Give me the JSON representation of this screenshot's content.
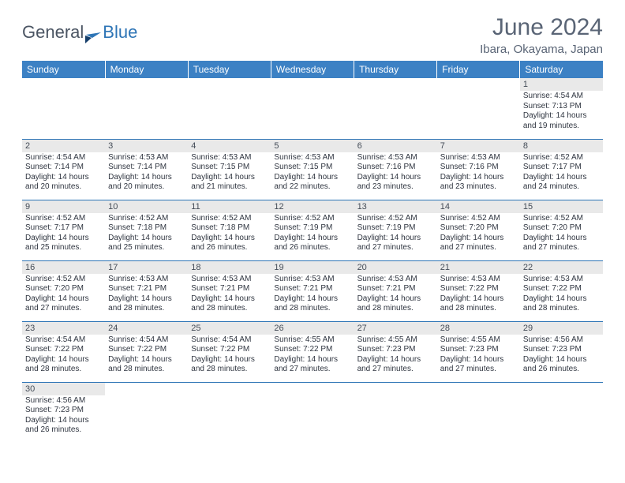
{
  "logo": {
    "text1": "General",
    "text2": "Blue"
  },
  "header": {
    "title": "June 2024",
    "location": "Ibara, Okayama, Japan"
  },
  "colors": {
    "header_bg": "#3c81c4",
    "header_text": "#ffffff",
    "daynum_bg": "#e9e9e9",
    "rule": "#2e75b6",
    "text": "#2f3540",
    "title_color": "#5a6576"
  },
  "weekdays": [
    "Sunday",
    "Monday",
    "Tuesday",
    "Wednesday",
    "Thursday",
    "Friday",
    "Saturday"
  ],
  "weeks": [
    [
      null,
      null,
      null,
      null,
      null,
      null,
      {
        "n": "1",
        "sr": "4:54 AM",
        "ss": "7:13 PM",
        "dl": "14 hours and 19 minutes."
      }
    ],
    [
      {
        "n": "2",
        "sr": "4:54 AM",
        "ss": "7:14 PM",
        "dl": "14 hours and 20 minutes."
      },
      {
        "n": "3",
        "sr": "4:53 AM",
        "ss": "7:14 PM",
        "dl": "14 hours and 20 minutes."
      },
      {
        "n": "4",
        "sr": "4:53 AM",
        "ss": "7:15 PM",
        "dl": "14 hours and 21 minutes."
      },
      {
        "n": "5",
        "sr": "4:53 AM",
        "ss": "7:15 PM",
        "dl": "14 hours and 22 minutes."
      },
      {
        "n": "6",
        "sr": "4:53 AM",
        "ss": "7:16 PM",
        "dl": "14 hours and 23 minutes."
      },
      {
        "n": "7",
        "sr": "4:53 AM",
        "ss": "7:16 PM",
        "dl": "14 hours and 23 minutes."
      },
      {
        "n": "8",
        "sr": "4:52 AM",
        "ss": "7:17 PM",
        "dl": "14 hours and 24 minutes."
      }
    ],
    [
      {
        "n": "9",
        "sr": "4:52 AM",
        "ss": "7:17 PM",
        "dl": "14 hours and 25 minutes."
      },
      {
        "n": "10",
        "sr": "4:52 AM",
        "ss": "7:18 PM",
        "dl": "14 hours and 25 minutes."
      },
      {
        "n": "11",
        "sr": "4:52 AM",
        "ss": "7:18 PM",
        "dl": "14 hours and 26 minutes."
      },
      {
        "n": "12",
        "sr": "4:52 AM",
        "ss": "7:19 PM",
        "dl": "14 hours and 26 minutes."
      },
      {
        "n": "13",
        "sr": "4:52 AM",
        "ss": "7:19 PM",
        "dl": "14 hours and 27 minutes."
      },
      {
        "n": "14",
        "sr": "4:52 AM",
        "ss": "7:20 PM",
        "dl": "14 hours and 27 minutes."
      },
      {
        "n": "15",
        "sr": "4:52 AM",
        "ss": "7:20 PM",
        "dl": "14 hours and 27 minutes."
      }
    ],
    [
      {
        "n": "16",
        "sr": "4:52 AM",
        "ss": "7:20 PM",
        "dl": "14 hours and 27 minutes."
      },
      {
        "n": "17",
        "sr": "4:53 AM",
        "ss": "7:21 PM",
        "dl": "14 hours and 28 minutes."
      },
      {
        "n": "18",
        "sr": "4:53 AM",
        "ss": "7:21 PM",
        "dl": "14 hours and 28 minutes."
      },
      {
        "n": "19",
        "sr": "4:53 AM",
        "ss": "7:21 PM",
        "dl": "14 hours and 28 minutes."
      },
      {
        "n": "20",
        "sr": "4:53 AM",
        "ss": "7:21 PM",
        "dl": "14 hours and 28 minutes."
      },
      {
        "n": "21",
        "sr": "4:53 AM",
        "ss": "7:22 PM",
        "dl": "14 hours and 28 minutes."
      },
      {
        "n": "22",
        "sr": "4:53 AM",
        "ss": "7:22 PM",
        "dl": "14 hours and 28 minutes."
      }
    ],
    [
      {
        "n": "23",
        "sr": "4:54 AM",
        "ss": "7:22 PM",
        "dl": "14 hours and 28 minutes."
      },
      {
        "n": "24",
        "sr": "4:54 AM",
        "ss": "7:22 PM",
        "dl": "14 hours and 28 minutes."
      },
      {
        "n": "25",
        "sr": "4:54 AM",
        "ss": "7:22 PM",
        "dl": "14 hours and 28 minutes."
      },
      {
        "n": "26",
        "sr": "4:55 AM",
        "ss": "7:22 PM",
        "dl": "14 hours and 27 minutes."
      },
      {
        "n": "27",
        "sr": "4:55 AM",
        "ss": "7:23 PM",
        "dl": "14 hours and 27 minutes."
      },
      {
        "n": "28",
        "sr": "4:55 AM",
        "ss": "7:23 PM",
        "dl": "14 hours and 27 minutes."
      },
      {
        "n": "29",
        "sr": "4:56 AM",
        "ss": "7:23 PM",
        "dl": "14 hours and 26 minutes."
      }
    ],
    [
      {
        "n": "30",
        "sr": "4:56 AM",
        "ss": "7:23 PM",
        "dl": "14 hours and 26 minutes."
      },
      null,
      null,
      null,
      null,
      null,
      null
    ]
  ],
  "labels": {
    "sunrise": "Sunrise: ",
    "sunset": "Sunset: ",
    "daylight": "Daylight: "
  }
}
